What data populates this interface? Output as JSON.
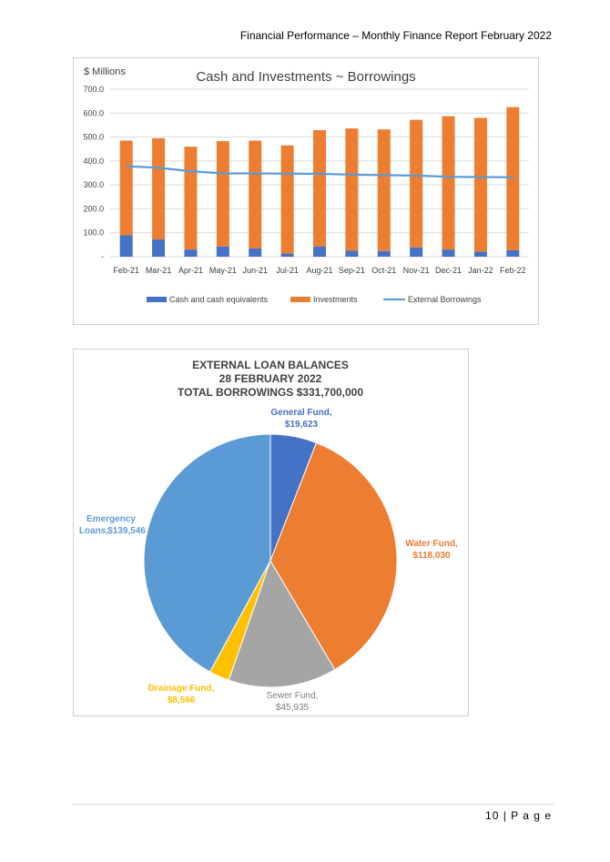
{
  "header": {
    "title": "Financial Performance – Monthly Finance Report February 2022"
  },
  "footer": {
    "page": "10 | P a g e"
  },
  "chart_data": [
    {
      "type": "bar",
      "title": "Cash and Investments ~ Borrowings",
      "ylabel": "$ Millions",
      "ylim": [
        0,
        700
      ],
      "yticks": [
        "-",
        "100.0",
        "200.0",
        "300.0",
        "400.0",
        "500.0",
        "600.0",
        "700.0"
      ],
      "categories": [
        "Feb-21",
        "Mar-21",
        "Apr-21",
        "May-21",
        "Jun-21",
        "Jul-21",
        "Aug-21",
        "Sep-21",
        "Oct-21",
        "Nov-21",
        "Dec-21",
        "Jan-22",
        "Feb-22"
      ],
      "series": [
        {
          "name": "Cash and cash equivalents",
          "kind": "stacked-bar",
          "color": "#4472c4",
          "values": [
            90,
            72,
            30,
            43,
            35,
            13,
            43,
            25,
            24,
            39,
            30,
            22,
            27
          ]
        },
        {
          "name": "Investments",
          "kind": "stacked-bar",
          "color": "#ed7d31",
          "values": [
            395,
            423,
            430,
            440,
            450,
            452,
            486,
            511,
            508,
            533,
            557,
            558,
            598
          ]
        },
        {
          "name": "External Borrowings",
          "kind": "line",
          "color": "#5b9bd5",
          "values": [
            378,
            372,
            357,
            348,
            348,
            347,
            346,
            343,
            341,
            339,
            334,
            333,
            331.7
          ]
        }
      ],
      "legend": "bottom"
    },
    {
      "type": "pie",
      "title_lines": [
        "EXTERNAL LOAN BALANCES",
        "28 FEBRUARY 2022",
        "TOTAL BORROWINGS $331,700,000"
      ],
      "slices": [
        {
          "name": "General Fund,",
          "value": 19623,
          "label": "$19,623",
          "color": "#4472c4"
        },
        {
          "name": "Water Fund,",
          "value": 118030,
          "label": "$118,030",
          "color": "#ed7d31"
        },
        {
          "name": "Sewer Fund,",
          "value": 45935,
          "label": "$45,935",
          "color": "#a5a5a5"
        },
        {
          "name": "Drainage Fund,",
          "value": 8566,
          "label": "$8,566",
          "color": "#ffc000"
        },
        {
          "name": "Emergency",
          "name2": "Loans,",
          "value": 139546,
          "label": "$139,546",
          "color": "#5b9bd5"
        }
      ]
    }
  ]
}
